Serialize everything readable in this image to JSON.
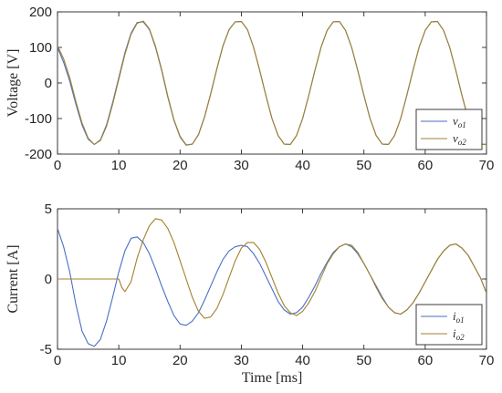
{
  "chart_data": [
    {
      "type": "line",
      "ylabel": "Voltage [V]",
      "xlabel": "",
      "xlim": [
        0,
        70
      ],
      "ylim": [
        -200,
        200
      ],
      "xticks": [
        "0",
        "10",
        "20",
        "30",
        "40",
        "50",
        "60",
        "70"
      ],
      "yticks": [
        "200",
        "100",
        "0",
        "-100",
        "-200"
      ],
      "legend_position": "bottom-right",
      "grid": false,
      "series": [
        {
          "name": "v",
          "name_subscript": "o1",
          "color": "#4a6fc4",
          "x": [
            0,
            1,
            2,
            3,
            4,
            5,
            6,
            7,
            8,
            9,
            10,
            11,
            12,
            13,
            14,
            15,
            16,
            17,
            18,
            19,
            20,
            21,
            22,
            23,
            24,
            25,
            26,
            27,
            28,
            29,
            30,
            31,
            32,
            33,
            34,
            35,
            36,
            37,
            38,
            39,
            40,
            41,
            42,
            43,
            44,
            45,
            46,
            47,
            48,
            49,
            50,
            51,
            52,
            53,
            54,
            55,
            56,
            57,
            58,
            59,
            60,
            61,
            62,
            63,
            64,
            65,
            66,
            67,
            68,
            69,
            70
          ],
          "y": [
            100,
            58,
            5,
            -60,
            -118,
            -158,
            -173,
            -160,
            -118,
            -55,
            15,
            85,
            140,
            170,
            172,
            150,
            100,
            35,
            -40,
            -105,
            -152,
            -175,
            -172,
            -145,
            -95,
            -30,
            40,
            105,
            150,
            172,
            173,
            150,
            100,
            35,
            -35,
            -100,
            -148,
            -172,
            -173,
            -148,
            -100,
            -35,
            35,
            100,
            148,
            172,
            173,
            148,
            100,
            35,
            -35,
            -100,
            -148,
            -172,
            -173,
            -148,
            -100,
            -35,
            35,
            100,
            148,
            172,
            173,
            148,
            100,
            35,
            -35,
            -100,
            -148,
            -172,
            -173
          ]
        },
        {
          "name": "v",
          "name_subscript": "o2",
          "color": "#a1822a",
          "x": [
            0,
            1,
            2,
            3,
            4,
            5,
            6,
            7,
            8,
            9,
            10,
            11,
            12,
            13,
            14,
            15,
            16,
            17,
            18,
            19,
            20,
            21,
            22,
            23,
            24,
            25,
            26,
            27,
            28,
            29,
            30,
            31,
            32,
            33,
            34,
            35,
            36,
            37,
            38,
            39,
            40,
            41,
            42,
            43,
            44,
            45,
            46,
            47,
            48,
            49,
            50,
            51,
            52,
            53,
            54,
            55,
            56,
            57,
            58,
            59,
            60,
            61,
            62,
            63,
            64,
            65,
            66,
            67,
            68,
            69,
            70
          ],
          "y": [
            105,
            68,
            15,
            -52,
            -112,
            -155,
            -173,
            -162,
            -122,
            -60,
            10,
            80,
            137,
            168,
            174,
            152,
            103,
            38,
            -37,
            -103,
            -150,
            -174,
            -172,
            -146,
            -96,
            -31,
            39,
            104,
            150,
            172,
            173,
            150,
            100,
            35,
            -35,
            -100,
            -148,
            -172,
            -173,
            -148,
            -100,
            -35,
            35,
            100,
            148,
            172,
            173,
            148,
            100,
            35,
            -35,
            -100,
            -148,
            -172,
            -173,
            -148,
            -100,
            -35,
            35,
            100,
            148,
            172,
            173,
            148,
            100,
            35,
            -35,
            -100,
            -148,
            -172,
            -173
          ]
        }
      ]
    },
    {
      "type": "line",
      "ylabel": "Current [A]",
      "xlabel": "Time [ms]",
      "xlim": [
        0,
        70
      ],
      "ylim": [
        -5,
        5
      ],
      "xticks": [
        "0",
        "10",
        "20",
        "30",
        "40",
        "50",
        "60",
        "70"
      ],
      "yticks": [
        "5",
        "0",
        "-5"
      ],
      "legend_position": "bottom-right",
      "grid": false,
      "series": [
        {
          "name": "i",
          "name_subscript": "o1",
          "color": "#4a6fc4",
          "x": [
            0,
            1,
            2,
            3,
            4,
            5,
            6,
            7,
            8,
            9,
            10,
            11,
            12,
            13,
            14,
            15,
            16,
            17,
            18,
            19,
            20,
            21,
            22,
            23,
            24,
            25,
            26,
            27,
            28,
            29,
            30,
            31,
            32,
            33,
            34,
            35,
            36,
            37,
            38,
            39,
            40,
            41,
            42,
            43,
            44,
            45,
            46,
            47,
            48,
            49,
            50,
            51,
            52,
            53,
            54,
            55,
            56,
            57,
            58,
            59,
            60,
            61,
            62,
            63,
            64,
            65,
            66,
            67,
            68,
            69,
            70
          ],
          "y": [
            3.6,
            2.3,
            0.5,
            -1.8,
            -3.7,
            -4.6,
            -4.8,
            -4.3,
            -3.0,
            -1.3,
            0.5,
            2.0,
            2.9,
            3.0,
            2.6,
            1.8,
            0.7,
            -0.5,
            -1.6,
            -2.6,
            -3.2,
            -3.3,
            -3.0,
            -2.4,
            -1.5,
            -0.5,
            0.5,
            1.4,
            2.0,
            2.3,
            2.4,
            2.3,
            1.8,
            1.1,
            0.2,
            -0.7,
            -1.6,
            -2.2,
            -2.5,
            -2.4,
            -2.0,
            -1.3,
            -0.5,
            0.4,
            1.2,
            1.9,
            2.3,
            2.5,
            2.3,
            1.8,
            1.1,
            0.3,
            -0.5,
            -1.3,
            -2.0,
            -2.4,
            -2.5,
            -2.2,
            -1.7,
            -1.0,
            -0.2,
            0.6,
            1.4,
            2.0,
            2.4,
            2.5,
            2.2,
            1.7,
            0.9,
            0.1,
            -1.0
          ]
        },
        {
          "name": "i",
          "name_subscript": "o2",
          "color": "#a1822a",
          "x": [
            0,
            1,
            2,
            3,
            4,
            5,
            6,
            7,
            8,
            9,
            10,
            10.5,
            11,
            12,
            13,
            14,
            15,
            16,
            17,
            18,
            19,
            20,
            21,
            22,
            23,
            24,
            25,
            26,
            27,
            28,
            29,
            30,
            31,
            32,
            33,
            34,
            35,
            36,
            37,
            38,
            39,
            40,
            41,
            42,
            43,
            44,
            45,
            46,
            47,
            48,
            49,
            50,
            51,
            52,
            53,
            54,
            55,
            56,
            57,
            58,
            59,
            60,
            61,
            62,
            63,
            64,
            65,
            66,
            67,
            68,
            69,
            70
          ],
          "y": [
            0,
            0,
            0,
            0,
            0,
            0,
            0,
            0,
            0,
            0,
            0,
            -0.6,
            -0.9,
            -0.2,
            1.5,
            2.8,
            3.8,
            4.3,
            4.2,
            3.6,
            2.6,
            1.3,
            0.0,
            -1.3,
            -2.3,
            -2.8,
            -2.7,
            -2.1,
            -1.1,
            0.1,
            1.3,
            2.2,
            2.6,
            2.6,
            2.1,
            1.2,
            0.1,
            -1.0,
            -1.9,
            -2.4,
            -2.6,
            -2.3,
            -1.7,
            -0.9,
            0.1,
            1.1,
            1.8,
            2.3,
            2.5,
            2.4,
            1.9,
            1.1,
            0.3,
            -0.6,
            -1.4,
            -2.0,
            -2.4,
            -2.5,
            -2.2,
            -1.7,
            -1.0,
            -0.2,
            0.6,
            1.4,
            2.0,
            2.4,
            2.5,
            2.2,
            1.7,
            0.9,
            0.1,
            -1.0
          ]
        }
      ]
    }
  ]
}
